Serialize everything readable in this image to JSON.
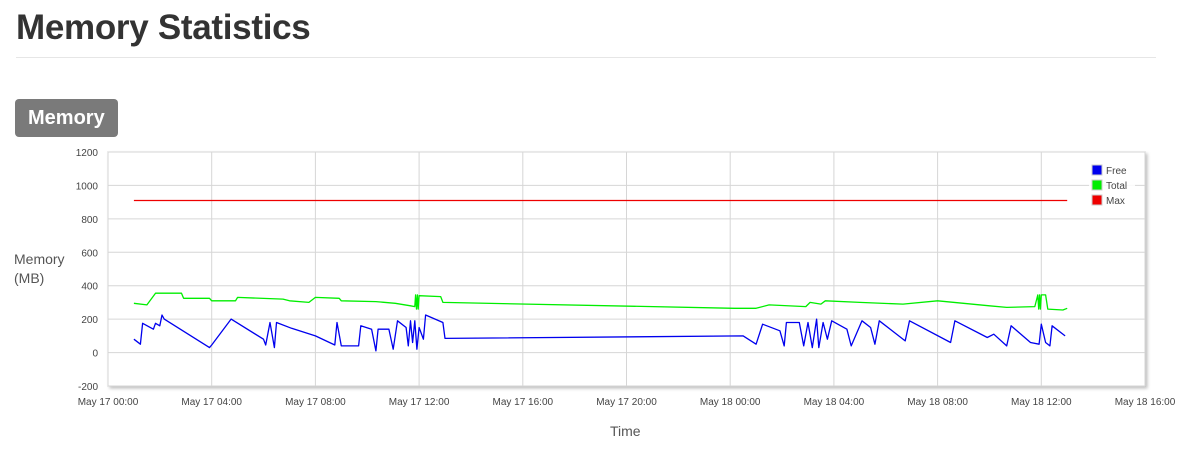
{
  "page": {
    "title": "Memory Statistics",
    "section": "Memory"
  },
  "chart_data": {
    "type": "line",
    "title": "",
    "xlabel": "Time",
    "ylabel": "Memory (MB)",
    "ylim": [
      -200,
      1200
    ],
    "yticks": [
      -200,
      0,
      200,
      400,
      600,
      800,
      1000,
      1200
    ],
    "xlim": [
      "2024-05-17T00:00",
      "2024-05-18T16:00"
    ],
    "xticks": [
      {
        "t": "2024-05-17T00:00",
        "label": "May 17 00:00"
      },
      {
        "t": "2024-05-17T04:00",
        "label": "May 17 04:00"
      },
      {
        "t": "2024-05-17T08:00",
        "label": "May 17 08:00"
      },
      {
        "t": "2024-05-17T12:00",
        "label": "May 17 12:00"
      },
      {
        "t": "2024-05-17T16:00",
        "label": "May 17 16:00"
      },
      {
        "t": "2024-05-17T20:00",
        "label": "May 17 20:00"
      },
      {
        "t": "2024-05-18T00:00",
        "label": "May 18 00:00"
      },
      {
        "t": "2024-05-18T04:00",
        "label": "May 18 04:00"
      },
      {
        "t": "2024-05-18T08:00",
        "label": "May 18 08:00"
      },
      {
        "t": "2024-05-18T12:00",
        "label": "May 18 12:00"
      },
      {
        "t": "2024-05-18T16:00",
        "label": "May 18 16:00"
      }
    ],
    "grid": true,
    "legend_position": "top-right",
    "series": [
      {
        "name": "Free",
        "color": "#0000ee",
        "points": [
          [
            "2024-05-17T01:00",
            80
          ],
          [
            "2024-05-17T01:15",
            50
          ],
          [
            "2024-05-17T01:20",
            175
          ],
          [
            "2024-05-17T01:45",
            140
          ],
          [
            "2024-05-17T01:50",
            175
          ],
          [
            "2024-05-17T02:00",
            160
          ],
          [
            "2024-05-17T02:05",
            225
          ],
          [
            "2024-05-17T02:10",
            200
          ],
          [
            "2024-05-17T03:55",
            30
          ],
          [
            "2024-05-17T04:00",
            45
          ],
          [
            "2024-05-17T04:45",
            200
          ],
          [
            "2024-05-17T06:00",
            80
          ],
          [
            "2024-05-17T06:05",
            45
          ],
          [
            "2024-05-17T06:15",
            180
          ],
          [
            "2024-05-17T06:25",
            30
          ],
          [
            "2024-05-17T06:30",
            180
          ],
          [
            "2024-05-17T07:05",
            145
          ],
          [
            "2024-05-17T08:00",
            100
          ],
          [
            "2024-05-17T08:45",
            45
          ],
          [
            "2024-05-17T08:50",
            180
          ],
          [
            "2024-05-17T09:00",
            40
          ],
          [
            "2024-05-17T09:40",
            40
          ],
          [
            "2024-05-17T09:45",
            160
          ],
          [
            "2024-05-17T10:10",
            140
          ],
          [
            "2024-05-17T10:20",
            10
          ],
          [
            "2024-05-17T10:25",
            140
          ],
          [
            "2024-05-17T10:50",
            140
          ],
          [
            "2024-05-17T11:00",
            20
          ],
          [
            "2024-05-17T11:10",
            190
          ],
          [
            "2024-05-17T11:30",
            150
          ],
          [
            "2024-05-17T11:35",
            40
          ],
          [
            "2024-05-17T11:40",
            190
          ],
          [
            "2024-05-17T11:45",
            60
          ],
          [
            "2024-05-17T11:50",
            190
          ],
          [
            "2024-05-17T11:55",
            20
          ],
          [
            "2024-05-17T12:00",
            150
          ],
          [
            "2024-05-17T12:10",
            80
          ],
          [
            "2024-05-17T12:15",
            225
          ],
          [
            "2024-05-17T12:55",
            180
          ],
          [
            "2024-05-17T13:00",
            85
          ],
          [
            "2024-05-18T00:30",
            100
          ],
          [
            "2024-05-18T01:00",
            50
          ],
          [
            "2024-05-18T01:15",
            170
          ],
          [
            "2024-05-18T01:55",
            130
          ],
          [
            "2024-05-18T02:05",
            40
          ],
          [
            "2024-05-18T02:10",
            180
          ],
          [
            "2024-05-18T02:40",
            180
          ],
          [
            "2024-05-18T02:50",
            40
          ],
          [
            "2024-05-18T03:00",
            180
          ],
          [
            "2024-05-18T03:10",
            30
          ],
          [
            "2024-05-18T03:20",
            200
          ],
          [
            "2024-05-18T03:25",
            30
          ],
          [
            "2024-05-18T03:35",
            180
          ],
          [
            "2024-05-18T03:45",
            80
          ],
          [
            "2024-05-18T03:55",
            190
          ],
          [
            "2024-05-18T04:30",
            140
          ],
          [
            "2024-05-18T04:40",
            40
          ],
          [
            "2024-05-18T05:05",
            190
          ],
          [
            "2024-05-18T05:25",
            150
          ],
          [
            "2024-05-18T05:35",
            50
          ],
          [
            "2024-05-18T05:45",
            190
          ],
          [
            "2024-05-18T06:45",
            70
          ],
          [
            "2024-05-18T06:55",
            190
          ],
          [
            "2024-05-18T08:30",
            60
          ],
          [
            "2024-05-18T08:40",
            190
          ],
          [
            "2024-05-18T09:55",
            90
          ],
          [
            "2024-05-18T10:10",
            110
          ],
          [
            "2024-05-18T10:40",
            40
          ],
          [
            "2024-05-18T10:50",
            160
          ],
          [
            "2024-05-18T11:35",
            60
          ],
          [
            "2024-05-18T11:55",
            50
          ],
          [
            "2024-05-18T12:00",
            170
          ],
          [
            "2024-05-18T12:10",
            60
          ],
          [
            "2024-05-18T12:20",
            40
          ],
          [
            "2024-05-18T12:25",
            160
          ],
          [
            "2024-05-18T12:55",
            100
          ]
        ]
      },
      {
        "name": "Total",
        "color": "#00ee00",
        "points": [
          [
            "2024-05-17T01:00",
            295
          ],
          [
            "2024-05-17T01:30",
            285
          ],
          [
            "2024-05-17T01:50",
            355
          ],
          [
            "2024-05-17T02:50",
            355
          ],
          [
            "2024-05-17T02:55",
            325
          ],
          [
            "2024-05-17T03:55",
            325
          ],
          [
            "2024-05-17T04:00",
            310
          ],
          [
            "2024-05-17T04:55",
            310
          ],
          [
            "2024-05-17T05:00",
            330
          ],
          [
            "2024-05-17T06:45",
            320
          ],
          [
            "2024-05-17T07:00",
            310
          ],
          [
            "2024-05-17T07:45",
            300
          ],
          [
            "2024-05-17T08:00",
            330
          ],
          [
            "2024-05-17T08:55",
            325
          ],
          [
            "2024-05-17T09:00",
            310
          ],
          [
            "2024-05-17T10:20",
            305
          ],
          [
            "2024-05-17T11:05",
            295
          ],
          [
            "2024-05-17T11:40",
            280
          ],
          [
            "2024-05-17T11:50",
            275
          ],
          [
            "2024-05-17T11:52",
            345
          ],
          [
            "2024-05-17T11:54",
            260
          ],
          [
            "2024-05-17T11:56",
            345
          ],
          [
            "2024-05-17T11:58",
            260
          ],
          [
            "2024-05-17T12:00",
            340
          ],
          [
            "2024-05-17T12:50",
            335
          ],
          [
            "2024-05-17T12:55",
            300
          ],
          [
            "2024-05-18T00:10",
            265
          ],
          [
            "2024-05-18T01:00",
            265
          ],
          [
            "2024-05-18T01:30",
            285
          ],
          [
            "2024-05-18T02:55",
            275
          ],
          [
            "2024-05-18T03:05",
            300
          ],
          [
            "2024-05-18T03:30",
            290
          ],
          [
            "2024-05-18T03:40",
            310
          ],
          [
            "2024-05-18T05:00",
            300
          ],
          [
            "2024-05-18T06:40",
            290
          ],
          [
            "2024-05-18T08:00",
            310
          ],
          [
            "2024-05-18T09:00",
            295
          ],
          [
            "2024-05-18T10:00",
            280
          ],
          [
            "2024-05-18T10:40",
            270
          ],
          [
            "2024-05-18T11:45",
            275
          ],
          [
            "2024-05-18T11:52",
            345
          ],
          [
            "2024-05-18T11:54",
            260
          ],
          [
            "2024-05-18T11:56",
            345
          ],
          [
            "2024-05-18T11:58",
            260
          ],
          [
            "2024-05-18T12:00",
            345
          ],
          [
            "2024-05-18T12:10",
            345
          ],
          [
            "2024-05-18T12:15",
            260
          ],
          [
            "2024-05-18T12:50",
            255
          ],
          [
            "2024-05-18T13:00",
            265
          ]
        ]
      },
      {
        "name": "Max",
        "color": "#ee0000",
        "points": [
          [
            "2024-05-17T01:00",
            910
          ],
          [
            "2024-05-18T13:00",
            910
          ]
        ]
      }
    ]
  }
}
